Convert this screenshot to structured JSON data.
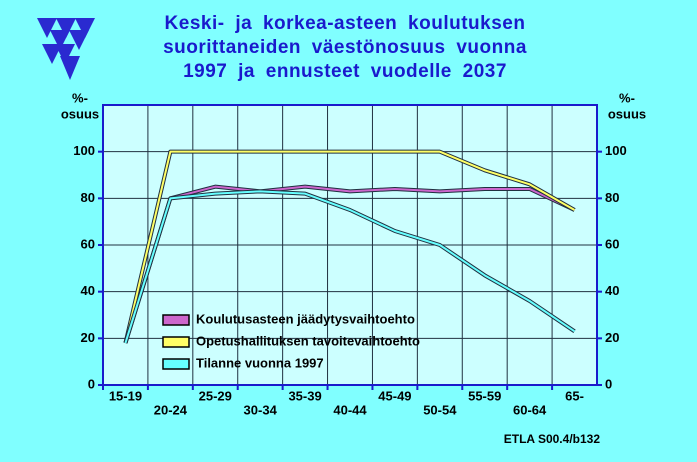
{
  "chart_data": {
    "type": "line",
    "title": [
      "Keski- ja korkea-asteen koulutuksen",
      "suorittaneiden väestönosuus vuonna",
      "1997 ja ennusteet vuodelle 2037"
    ],
    "ylabel": [
      "%-",
      "osuus"
    ],
    "y2label": [
      "%-",
      "osuus"
    ],
    "categories": [
      "15-19",
      "20-24",
      "25-29",
      "30-34",
      "35-39",
      "40-44",
      "45-49",
      "50-54",
      "55-59",
      "60-64",
      "65-"
    ],
    "series": [
      {
        "name": "Koulutusasteen jäädytysvaihtoehto",
        "color": "#cc66cc",
        "values": [
          18,
          80,
          85,
          83,
          85,
          83,
          84,
          83,
          84,
          84,
          75
        ]
      },
      {
        "name": "Opetushallituksen tavoitevaihtoehto",
        "color": "#ffff66",
        "values": [
          18,
          100,
          100,
          100,
          100,
          100,
          100,
          100,
          92,
          86,
          75
        ]
      },
      {
        "name": "Tilanne vuonna 1997",
        "color": "#66ffff",
        "values": [
          18,
          80,
          82,
          83,
          82,
          75,
          66,
          60,
          47,
          36,
          23
        ]
      }
    ],
    "ylim": [
      0,
      120
    ],
    "yticks": [
      0,
      20,
      40,
      60,
      80,
      100
    ],
    "y2lim": [
      0,
      120
    ],
    "y2ticks": [
      0,
      20,
      40,
      60,
      80,
      100
    ],
    "grid": true,
    "legend": "lower center",
    "source": "ETLA S00.4/b132"
  }
}
